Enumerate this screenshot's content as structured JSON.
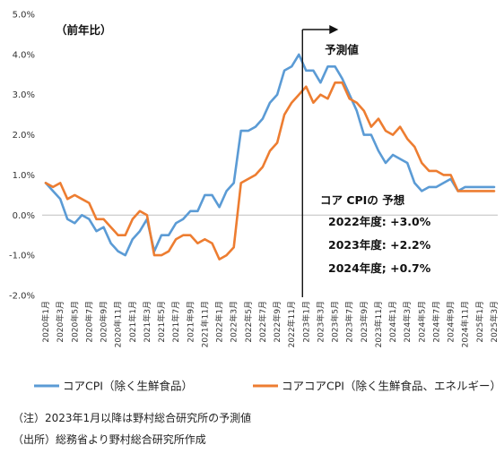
{
  "chart_data": {
    "type": "line",
    "unit_label": "（前年比）",
    "ylim": [
      -2.0,
      5.0
    ],
    "yticks": [
      -2.0,
      -1.0,
      0.0,
      1.0,
      2.0,
      3.0,
      4.0,
      5.0
    ],
    "ytick_labels": [
      "-2.0%",
      "-1.0%",
      "0.0%",
      "1.0%",
      "2.0%",
      "3.0%",
      "4.0%",
      "5.0%"
    ],
    "x": [
      "2020年1月",
      "2020年2月",
      "2020年3月",
      "2020年4月",
      "2020年5月",
      "2020年6月",
      "2020年7月",
      "2020年8月",
      "2020年9月",
      "2020年10月",
      "2020年11月",
      "2020年12月",
      "2021年1月",
      "2021年2月",
      "2021年3月",
      "2021年4月",
      "2021年5月",
      "2021年6月",
      "2021年7月",
      "2021年8月",
      "2021年9月",
      "2021年10月",
      "2021年11月",
      "2021年12月",
      "2022年1月",
      "2022年2月",
      "2022年3月",
      "2022年4月",
      "2022年5月",
      "2022年6月",
      "2022年7月",
      "2022年8月",
      "2022年9月",
      "2022年10月",
      "2022年11月",
      "2022年12月",
      "2023年1月",
      "2023年2月",
      "2023年3月",
      "2023年4月",
      "2023年5月",
      "2023年6月",
      "2023年7月",
      "2023年8月",
      "2023年9月",
      "2023年10月",
      "2023年11月",
      "2023年12月",
      "2024年1月",
      "2024年2月",
      "2024年3月",
      "2024年4月",
      "2024年5月",
      "2024年6月",
      "2024年7月",
      "2024年8月",
      "2024年9月",
      "2024年10月",
      "2024年11月",
      "2024年12月",
      "2025年1月",
      "2025年2月",
      "2025年3月"
    ],
    "xtick_labels": [
      "2020年1月",
      "2020年3月",
      "2020年5月",
      "2020年7月",
      "2020年9月",
      "2020年11月",
      "2021年1月",
      "2021年3月",
      "2021年5月",
      "2021年7月",
      "2021年9月",
      "2021年11月",
      "2022年1月",
      "2022年3月",
      "2022年5月",
      "2022年7月",
      "2022年9月",
      "2022年11月",
      "2023年1月",
      "2023年3月",
      "2023年5月",
      "2023年7月",
      "2023年9月",
      "2023年11月",
      "2024年1月",
      "2024年3月",
      "2024年5月",
      "2024年7月",
      "2024年9月",
      "2024年11月",
      "2025年1月",
      "2025年3月"
    ],
    "series": [
      {
        "name": "コアCPI（除く生鮮食品）",
        "color": "#5B9BD5",
        "values": [
          0.8,
          0.6,
          0.4,
          -0.1,
          -0.2,
          0.0,
          -0.1,
          -0.4,
          -0.3,
          -0.7,
          -0.9,
          -1.0,
          -0.6,
          -0.4,
          -0.1,
          -0.9,
          -0.5,
          -0.5,
          -0.2,
          -0.1,
          0.1,
          0.1,
          0.5,
          0.5,
          0.2,
          0.6,
          0.8,
          2.1,
          2.1,
          2.2,
          2.4,
          2.8,
          3.0,
          3.6,
          3.7,
          4.0,
          3.6,
          3.6,
          3.3,
          3.7,
          3.7,
          3.4,
          3.0,
          2.6,
          2.0,
          2.0,
          1.6,
          1.3,
          1.5,
          1.4,
          1.3,
          0.8,
          0.6,
          0.7,
          0.7,
          0.8,
          0.9,
          0.6,
          0.7,
          0.7,
          0.7,
          0.7,
          0.7
        ]
      },
      {
        "name": "コアコアCPI（除く生鮮食品、エネルギー）",
        "color": "#ED7D31",
        "values": [
          0.8,
          0.7,
          0.8,
          0.4,
          0.5,
          0.4,
          0.3,
          -0.1,
          -0.1,
          -0.3,
          -0.5,
          -0.5,
          -0.1,
          0.1,
          0.0,
          -1.0,
          -1.0,
          -0.9,
          -0.6,
          -0.5,
          -0.5,
          -0.7,
          -0.6,
          -0.7,
          -1.1,
          -1.0,
          -0.8,
          0.8,
          0.9,
          1.0,
          1.2,
          1.6,
          1.8,
          2.5,
          2.8,
          3.0,
          3.2,
          2.8,
          3.0,
          2.9,
          3.3,
          3.3,
          2.9,
          2.8,
          2.6,
          2.2,
          2.4,
          2.1,
          2.0,
          2.2,
          1.9,
          1.7,
          1.3,
          1.1,
          1.1,
          1.0,
          1.0,
          0.6,
          0.6,
          0.6,
          0.6,
          0.6,
          0.6
        ]
      }
    ],
    "forecast_label": "予測値",
    "forecast_start": "2023年1月",
    "annotation": {
      "title": "コア CPIの 予想",
      "lines": [
        "2022年度: +3.0%",
        "2023年度: +2.2%",
        "2024年度; +0.7%"
      ]
    },
    "legend_position": "bottom",
    "grid": false
  },
  "footnotes": {
    "note": "（注）2023年1月以降は野村総合研究所の予測値",
    "source": "（出所）総務省より野村総合研究所作成"
  }
}
